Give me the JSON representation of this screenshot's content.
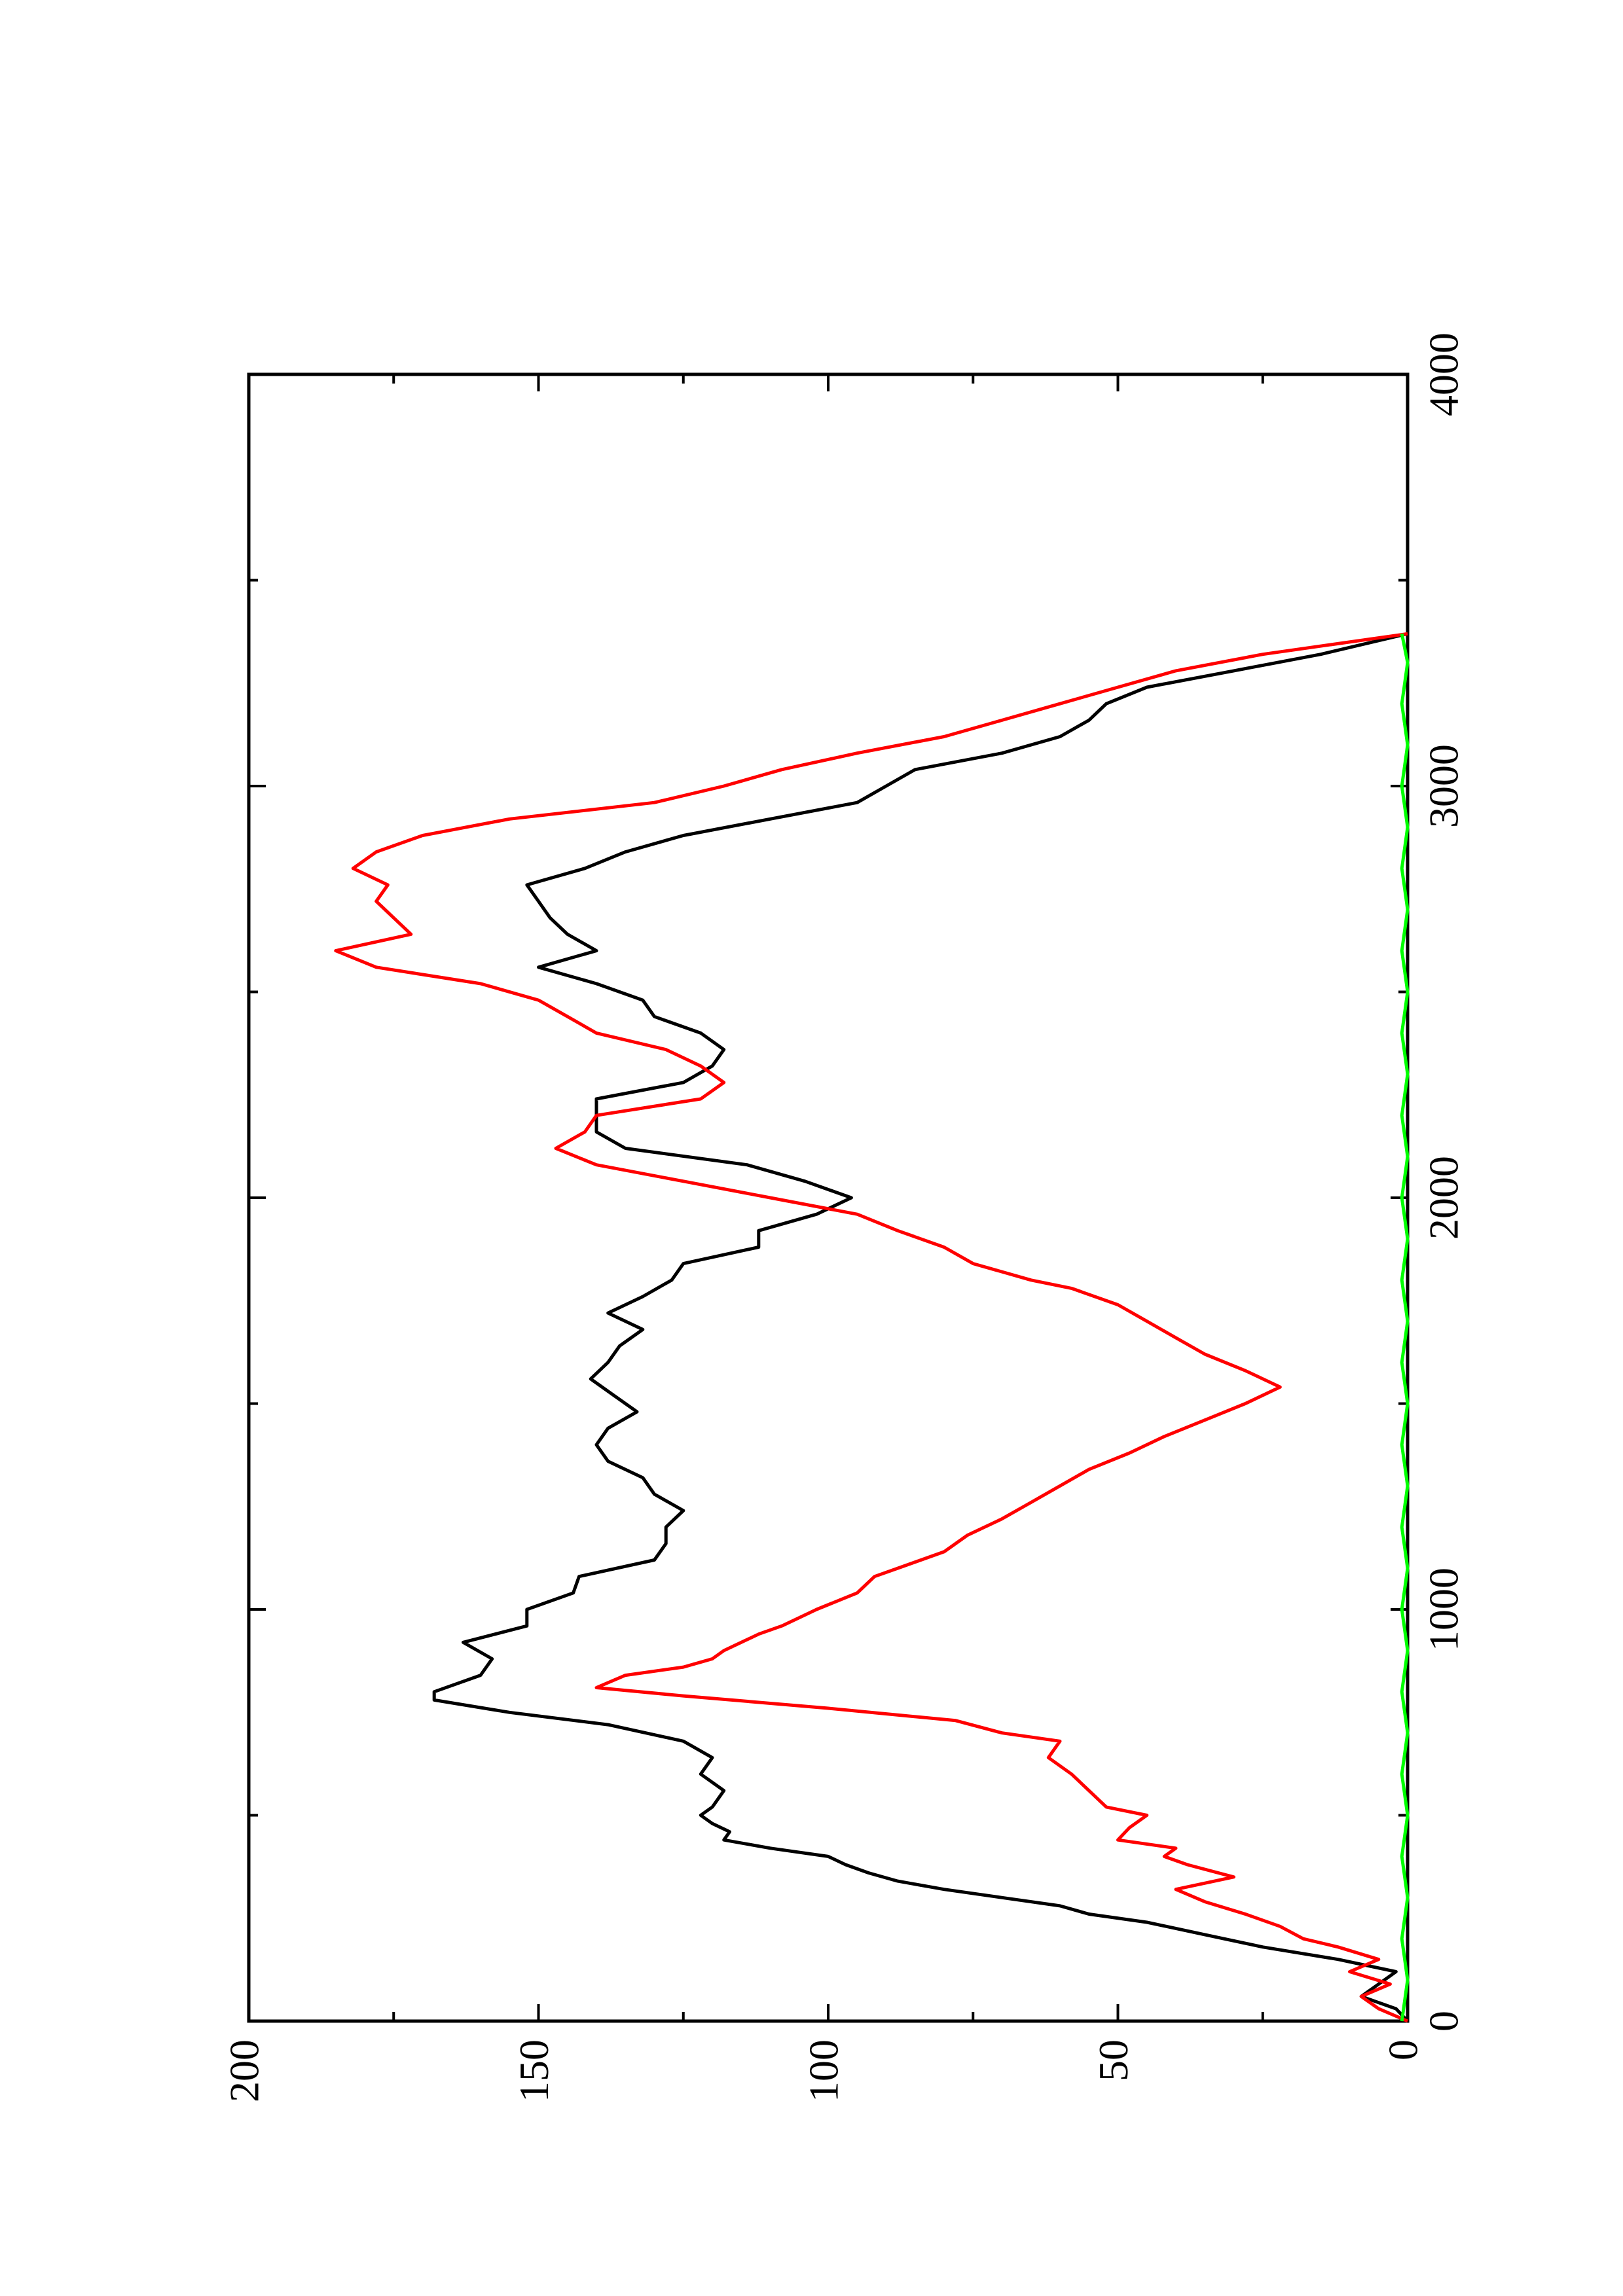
{
  "chart_data": {
    "type": "line",
    "orientation": "rotated-90-ccw",
    "title": "",
    "xlabel": "",
    "ylabel": "",
    "xlim": [
      0,
      4000
    ],
    "ylim": [
      0,
      200
    ],
    "x_ticks": [
      0,
      1000,
      2000,
      3000,
      4000
    ],
    "x_minor_ticks": [
      500,
      1500,
      2500,
      3500
    ],
    "y_ticks": [
      0,
      50,
      100,
      150,
      200
    ],
    "y_minor_ticks": [
      25,
      75,
      125,
      175
    ],
    "x_tick_labels": [
      "0",
      "1000",
      "2000",
      "3000",
      "4000"
    ],
    "y_tick_labels": [
      "0",
      "50",
      "100",
      "150",
      "200"
    ],
    "grid": false,
    "legend": "none",
    "series": [
      {
        "color": "#000000",
        "points": [
          [
            0,
            0
          ],
          [
            30,
            2
          ],
          [
            60,
            8
          ],
          [
            90,
            5
          ],
          [
            120,
            2
          ],
          [
            150,
            12
          ],
          [
            180,
            25
          ],
          [
            210,
            35
          ],
          [
            240,
            45
          ],
          [
            260,
            55
          ],
          [
            280,
            60
          ],
          [
            300,
            70
          ],
          [
            320,
            80
          ],
          [
            340,
            88
          ],
          [
            360,
            93
          ],
          [
            380,
            97
          ],
          [
            400,
            100
          ],
          [
            420,
            110
          ],
          [
            440,
            118
          ],
          [
            460,
            117
          ],
          [
            480,
            120
          ],
          [
            500,
            122
          ],
          [
            520,
            120
          ],
          [
            560,
            118
          ],
          [
            600,
            122
          ],
          [
            640,
            120
          ],
          [
            680,
            125
          ],
          [
            720,
            138
          ],
          [
            750,
            155
          ],
          [
            780,
            168
          ],
          [
            800,
            168
          ],
          [
            840,
            160
          ],
          [
            880,
            158
          ],
          [
            920,
            163
          ],
          [
            960,
            152
          ],
          [
            1000,
            152
          ],
          [
            1040,
            144
          ],
          [
            1080,
            143
          ],
          [
            1120,
            130
          ],
          [
            1160,
            128
          ],
          [
            1200,
            128
          ],
          [
            1240,
            125
          ],
          [
            1280,
            130
          ],
          [
            1320,
            132
          ],
          [
            1360,
            138
          ],
          [
            1400,
            140
          ],
          [
            1440,
            138
          ],
          [
            1480,
            133
          ],
          [
            1520,
            137
          ],
          [
            1560,
            141
          ],
          [
            1600,
            138
          ],
          [
            1640,
            136
          ],
          [
            1680,
            132
          ],
          [
            1720,
            138
          ],
          [
            1760,
            132
          ],
          [
            1800,
            127
          ],
          [
            1840,
            125
          ],
          [
            1880,
            112
          ],
          [
            1920,
            112
          ],
          [
            1960,
            102
          ],
          [
            2000,
            96
          ],
          [
            2040,
            104
          ],
          [
            2080,
            114
          ],
          [
            2120,
            135
          ],
          [
            2160,
            140
          ],
          [
            2200,
            140
          ],
          [
            2240,
            140
          ],
          [
            2280,
            125
          ],
          [
            2320,
            120
          ],
          [
            2360,
            118
          ],
          [
            2400,
            122
          ],
          [
            2440,
            130
          ],
          [
            2480,
            132
          ],
          [
            2520,
            140
          ],
          [
            2560,
            150
          ],
          [
            2600,
            140
          ],
          [
            2640,
            145
          ],
          [
            2680,
            148
          ],
          [
            2720,
            150
          ],
          [
            2760,
            152
          ],
          [
            2800,
            142
          ],
          [
            2840,
            135
          ],
          [
            2880,
            125
          ],
          [
            2920,
            110
          ],
          [
            2960,
            95
          ],
          [
            3000,
            90
          ],
          [
            3040,
            85
          ],
          [
            3080,
            70
          ],
          [
            3120,
            60
          ],
          [
            3160,
            55
          ],
          [
            3200,
            52
          ],
          [
            3240,
            45
          ],
          [
            3280,
            30
          ],
          [
            3320,
            15
          ],
          [
            3370,
            0
          ]
        ]
      },
      {
        "color": "#ff0000",
        "points": [
          [
            0,
            0
          ],
          [
            30,
            5
          ],
          [
            60,
            8
          ],
          [
            90,
            3
          ],
          [
            120,
            10
          ],
          [
            150,
            5
          ],
          [
            180,
            12
          ],
          [
            200,
            18
          ],
          [
            230,
            22
          ],
          [
            260,
            28
          ],
          [
            290,
            35
          ],
          [
            320,
            40
          ],
          [
            350,
            30
          ],
          [
            380,
            38
          ],
          [
            400,
            42
          ],
          [
            420,
            40
          ],
          [
            440,
            50
          ],
          [
            470,
            48
          ],
          [
            500,
            45
          ],
          [
            520,
            52
          ],
          [
            560,
            55
          ],
          [
            600,
            58
          ],
          [
            640,
            62
          ],
          [
            680,
            60
          ],
          [
            700,
            70
          ],
          [
            730,
            78
          ],
          [
            760,
            100
          ],
          [
            790,
            125
          ],
          [
            810,
            140
          ],
          [
            840,
            135
          ],
          [
            860,
            125
          ],
          [
            880,
            120
          ],
          [
            900,
            118
          ],
          [
            920,
            115
          ],
          [
            940,
            112
          ],
          [
            960,
            108
          ],
          [
            980,
            105
          ],
          [
            1000,
            102
          ],
          [
            1040,
            95
          ],
          [
            1080,
            92
          ],
          [
            1100,
            88
          ],
          [
            1140,
            80
          ],
          [
            1180,
            76
          ],
          [
            1220,
            70
          ],
          [
            1260,
            65
          ],
          [
            1300,
            60
          ],
          [
            1340,
            55
          ],
          [
            1380,
            48
          ],
          [
            1420,
            42
          ],
          [
            1460,
            35
          ],
          [
            1500,
            28
          ],
          [
            1540,
            22
          ],
          [
            1580,
            28
          ],
          [
            1620,
            35
          ],
          [
            1660,
            40
          ],
          [
            1700,
            45
          ],
          [
            1740,
            50
          ],
          [
            1780,
            58
          ],
          [
            1800,
            65
          ],
          [
            1840,
            75
          ],
          [
            1880,
            80
          ],
          [
            1920,
            88
          ],
          [
            1960,
            95
          ],
          [
            2000,
            110
          ],
          [
            2040,
            125
          ],
          [
            2080,
            140
          ],
          [
            2120,
            147
          ],
          [
            2160,
            142
          ],
          [
            2200,
            140
          ],
          [
            2240,
            122
          ],
          [
            2280,
            118
          ],
          [
            2320,
            122
          ],
          [
            2360,
            128
          ],
          [
            2400,
            140
          ],
          [
            2440,
            145
          ],
          [
            2480,
            150
          ],
          [
            2520,
            160
          ],
          [
            2560,
            178
          ],
          [
            2600,
            185
          ],
          [
            2640,
            172
          ],
          [
            2680,
            175
          ],
          [
            2720,
            178
          ],
          [
            2760,
            176
          ],
          [
            2800,
            182
          ],
          [
            2840,
            178
          ],
          [
            2880,
            170
          ],
          [
            2920,
            155
          ],
          [
            2960,
            130
          ],
          [
            3000,
            118
          ],
          [
            3040,
            108
          ],
          [
            3080,
            95
          ],
          [
            3120,
            80
          ],
          [
            3160,
            70
          ],
          [
            3200,
            60
          ],
          [
            3240,
            50
          ],
          [
            3280,
            40
          ],
          [
            3320,
            25
          ],
          [
            3370,
            0
          ]
        ]
      },
      {
        "color": "#00ff00",
        "points": [
          [
            0,
            1
          ],
          [
            100,
            0
          ],
          [
            200,
            1
          ],
          [
            300,
            0
          ],
          [
            400,
            1
          ],
          [
            500,
            0
          ],
          [
            600,
            1
          ],
          [
            700,
            0
          ],
          [
            800,
            1
          ],
          [
            900,
            0
          ],
          [
            1000,
            1
          ],
          [
            1100,
            0
          ],
          [
            1200,
            1
          ],
          [
            1300,
            0
          ],
          [
            1400,
            1
          ],
          [
            1500,
            0
          ],
          [
            1600,
            1
          ],
          [
            1700,
            0
          ],
          [
            1800,
            1
          ],
          [
            1900,
            0
          ],
          [
            2000,
            1
          ],
          [
            2100,
            0
          ],
          [
            2200,
            1
          ],
          [
            2300,
            0
          ],
          [
            2400,
            1
          ],
          [
            2500,
            0
          ],
          [
            2600,
            1
          ],
          [
            2700,
            0
          ],
          [
            2800,
            1
          ],
          [
            2900,
            0
          ],
          [
            3000,
            1
          ],
          [
            3100,
            0
          ],
          [
            3200,
            1
          ],
          [
            3300,
            0
          ],
          [
            3370,
            1
          ]
        ]
      }
    ]
  }
}
